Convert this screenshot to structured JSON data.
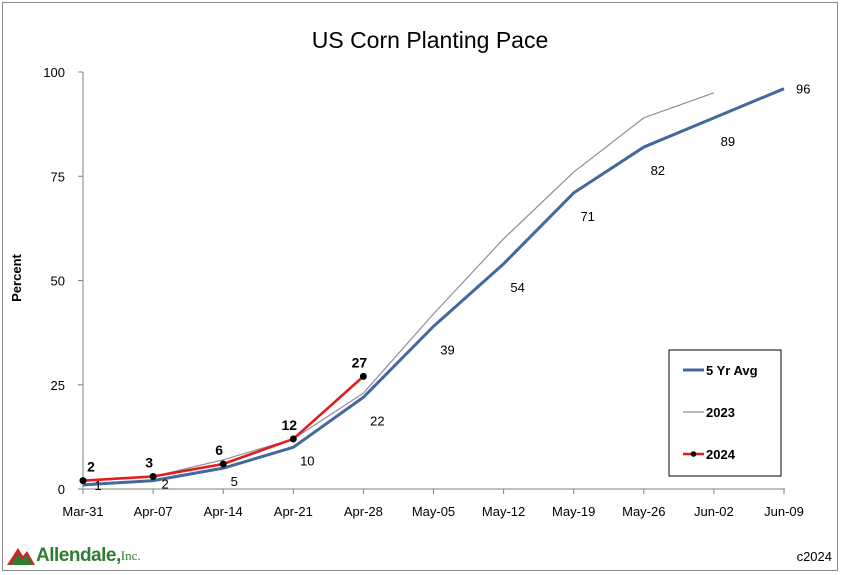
{
  "chart_data": {
    "type": "line",
    "title": "US Corn Planting Pace",
    "ylabel": "Percent",
    "xlabel": "",
    "ylim": [
      0,
      100
    ],
    "yticks": [
      0,
      25,
      50,
      75,
      100
    ],
    "categories": [
      "Mar-31",
      "Apr-07",
      "Apr-14",
      "Apr-21",
      "Apr-28",
      "May-05",
      "May-12",
      "May-19",
      "May-26",
      "Jun-02",
      "Jun-09"
    ],
    "series": [
      {
        "name": "5 Yr Avg",
        "color": "#41699e",
        "values": [
          1,
          2,
          5,
          10,
          22,
          39,
          54,
          71,
          82,
          89,
          96
        ],
        "labels": [
          "1",
          "2",
          "5",
          "10",
          "22",
          "39",
          "54",
          "71",
          "82",
          "89",
          "96"
        ]
      },
      {
        "name": "2023",
        "color": "#8e8e9e",
        "values": [
          2,
          3,
          7,
          12,
          23,
          42,
          60,
          76,
          89,
          95,
          null
        ]
      },
      {
        "name": "2024",
        "color": "#e51c1c",
        "values": [
          2,
          3,
          6,
          12,
          27,
          null,
          null,
          null,
          null,
          null,
          null
        ],
        "labels": [
          "2",
          "3",
          "6",
          "12",
          "27"
        ]
      }
    ],
    "legend_position": "bottom-right",
    "grid": false
  },
  "footer": {
    "logo_text": "Allendale,",
    "logo_sub": "Inc.",
    "copyright": "c2024"
  }
}
